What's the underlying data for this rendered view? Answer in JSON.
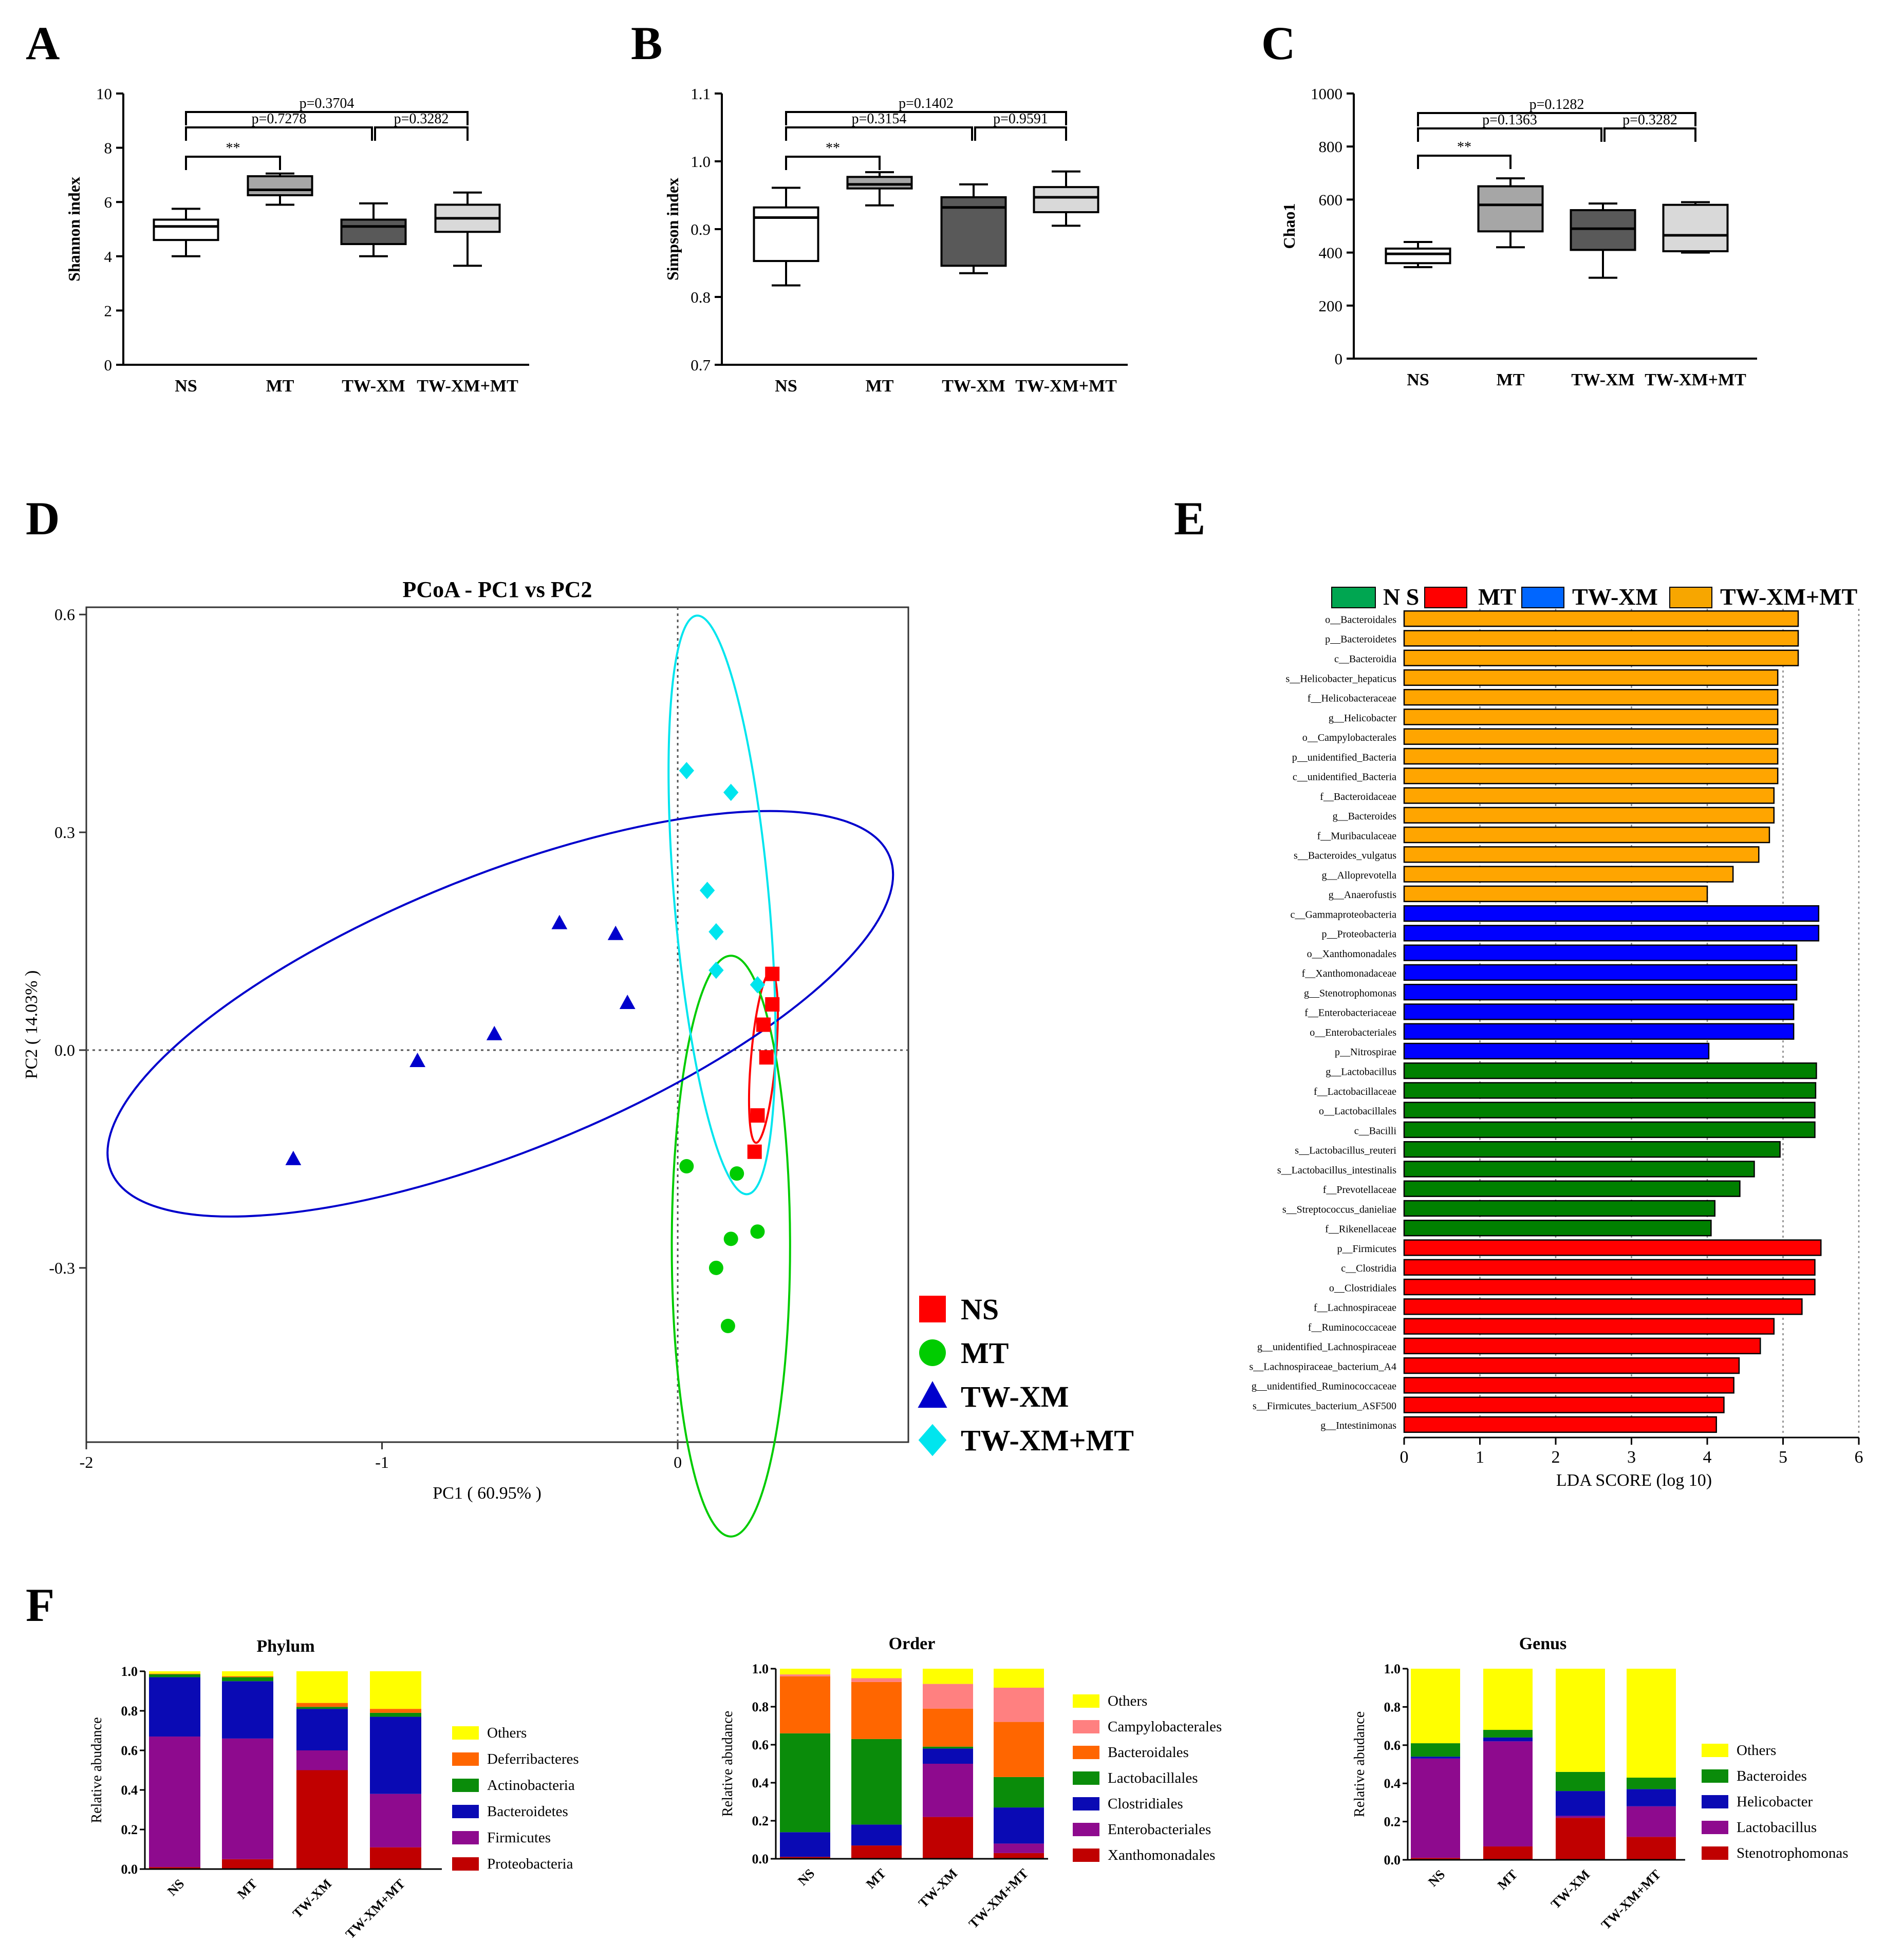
{
  "chart_data": [
    {
      "panel": "A",
      "type": "box",
      "ylabel": "Shannon index",
      "ylim": [
        0,
        10
      ],
      "yticks": [
        0,
        2,
        4,
        6,
        8,
        10
      ],
      "categories": [
        "NS",
        "MT",
        "TW-XM",
        "TW-XM+MT"
      ],
      "boxes": [
        {
          "min": 4.0,
          "q1": 4.6,
          "median": 5.1,
          "q3": 5.35,
          "max": 5.75,
          "fill": "#ffffff"
        },
        {
          "min": 5.9,
          "q1": 6.25,
          "median": 6.45,
          "q3": 6.95,
          "max": 7.05,
          "fill": "#a6a6a6"
        },
        {
          "min": 4.0,
          "q1": 4.45,
          "median": 5.1,
          "q3": 5.35,
          "max": 5.95,
          "fill": "#595959"
        },
        {
          "min": 3.65,
          "q1": 4.9,
          "median": 5.4,
          "q3": 5.9,
          "max": 6.35,
          "fill": "#d9d9d9"
        }
      ],
      "brackets": [
        {
          "from": 0,
          "to": 1,
          "label": "**"
        },
        {
          "from": 0,
          "to": 2,
          "label": "p=0.7278"
        },
        {
          "from": 2,
          "to": 3,
          "label": "p=0.3282"
        },
        {
          "from": 0,
          "to": 3,
          "label": "p=0.3704"
        }
      ]
    },
    {
      "panel": "B",
      "type": "box",
      "ylabel": "Simpson index",
      "ylim": [
        0.7,
        1.1
      ],
      "yticks": [
        "0.7",
        "0.8",
        "0.9",
        "1.0",
        "1.1"
      ],
      "categories": [
        "NS",
        "MT",
        "TW-XM",
        "TW-XM+MT"
      ],
      "boxes": [
        {
          "min": 0.817,
          "q1": 0.853,
          "median": 0.917,
          "q3": 0.932,
          "max": 0.961,
          "fill": "#ffffff"
        },
        {
          "min": 0.935,
          "q1": 0.96,
          "median": 0.966,
          "q3": 0.977,
          "max": 0.984,
          "fill": "#a6a6a6"
        },
        {
          "min": 0.835,
          "q1": 0.846,
          "median": 0.932,
          "q3": 0.947,
          "max": 0.966,
          "fill": "#595959"
        },
        {
          "min": 0.905,
          "q1": 0.925,
          "median": 0.947,
          "q3": 0.962,
          "max": 0.985,
          "fill": "#d9d9d9"
        }
      ],
      "brackets": [
        {
          "from": 0,
          "to": 1,
          "label": "**"
        },
        {
          "from": 0,
          "to": 2,
          "label": "p=0.3154"
        },
        {
          "from": 2,
          "to": 3,
          "label": "p=0.9591"
        },
        {
          "from": 0,
          "to": 3,
          "label": "p=0.1402"
        }
      ]
    },
    {
      "panel": "C",
      "type": "box",
      "ylabel": "Chao1",
      "ylim": [
        0,
        1000
      ],
      "yticks": [
        0,
        200,
        400,
        600,
        800,
        1000
      ],
      "categories": [
        "NS",
        "MT",
        "TW-XM",
        "TW-XM+MT"
      ],
      "boxes": [
        {
          "min": 345,
          "q1": 360,
          "median": 395,
          "q3": 415,
          "max": 440,
          "fill": "#ffffff"
        },
        {
          "min": 420,
          "q1": 480,
          "median": 580,
          "q3": 650,
          "max": 680,
          "fill": "#a6a6a6"
        },
        {
          "min": 305,
          "q1": 410,
          "median": 490,
          "q3": 560,
          "max": 585,
          "fill": "#595959"
        },
        {
          "min": 400,
          "q1": 405,
          "median": 465,
          "q3": 580,
          "max": 590,
          "fill": "#d9d9d9"
        }
      ],
      "brackets": [
        {
          "from": 0,
          "to": 1,
          "label": "**"
        },
        {
          "from": 0,
          "to": 2,
          "label": "p=0.1363"
        },
        {
          "from": 2,
          "to": 3,
          "label": "p=0.3282"
        },
        {
          "from": 0,
          "to": 3,
          "label": "p=0.1282"
        }
      ]
    },
    {
      "panel": "D",
      "type": "scatter",
      "title": "PCoA - PC1 vs PC2",
      "xlabel": "PC1 ( 60.95% )",
      "ylabel": "PC2 ( 14.03% )",
      "xlim": [
        -2.0,
        0.78
      ],
      "ylim": [
        -0.54,
        0.61
      ],
      "xticks": [
        -2,
        -1,
        0
      ],
      "yticks": [
        -0.3,
        0.0,
        0.3,
        0.6
      ],
      "yticklabels": [
        "-0.3",
        "0.0",
        "0.3",
        "0.6"
      ],
      "series": [
        {
          "name": "NS",
          "color": "#ff0000",
          "marker": "square",
          "points": [
            [
              0.32,
              0.105
            ],
            [
              0.32,
              0.063
            ],
            [
              0.29,
              0.035
            ],
            [
              0.3,
              -0.01
            ],
            [
              0.27,
              -0.09
            ],
            [
              0.26,
              -0.14
            ]
          ],
          "ellipse": {
            "cx": 0.29,
            "cy": -0.01,
            "rx": 0.29,
            "ry": 0.017,
            "angle": -85
          }
        },
        {
          "name": "MT",
          "color": "#00cc00",
          "marker": "circle",
          "points": [
            [
              0.03,
              -0.16
            ],
            [
              0.2,
              -0.17
            ],
            [
              0.27,
              -0.25
            ],
            [
              0.18,
              -0.26
            ],
            [
              0.13,
              -0.3
            ],
            [
              0.17,
              -0.38
            ]
          ],
          "ellipse": {
            "cx": 0.18,
            "cy": -0.27,
            "rx": 0.2,
            "ry": 0.4,
            "angle": 0
          }
        },
        {
          "name": "TW-XM",
          "color": "#0000cc",
          "marker": "triangle",
          "points": [
            [
              -1.3,
              -0.15
            ],
            [
              -0.88,
              -0.015
            ],
            [
              -0.62,
              0.022
            ],
            [
              -0.17,
              0.065
            ],
            [
              -0.4,
              0.175
            ],
            [
              -0.21,
              0.16
            ]
          ],
          "ellipse": {
            "cx": -0.6,
            "cy": 0.05,
            "rx": 1.42,
            "ry": 0.19,
            "angle": -22
          }
        },
        {
          "name": "TW-XM+MT",
          "color": "#00e5ee",
          "marker": "diamond",
          "points": [
            [
              0.03,
              0.385
            ],
            [
              0.18,
              0.355
            ],
            [
              0.1,
              0.22
            ],
            [
              0.13,
              0.163
            ],
            [
              0.13,
              0.11
            ],
            [
              0.27,
              0.09
            ]
          ],
          "ellipse": {
            "cx": 0.15,
            "cy": 0.2,
            "rx": 0.16,
            "ry": 0.4,
            "angle": -5
          }
        }
      ]
    },
    {
      "panel": "E",
      "type": "bar",
      "orientation": "horizontal",
      "xlabel": "LDA SCORE (log 10)",
      "xlim": [
        0,
        6
      ],
      "xticks": [
        0,
        1,
        2,
        3,
        4,
        5,
        6
      ],
      "legend": [
        {
          "name": "N S",
          "color": "#00a651"
        },
        {
          "name": "MT",
          "color": "#ff0000"
        },
        {
          "name": "TW-XM",
          "color": "#0066ff"
        },
        {
          "name": "TW-XM+MT",
          "color": "#f7a600"
        }
      ],
      "bars": [
        {
          "label": "o__Bacteroidales",
          "value": 5.2,
          "color": "#ffa500"
        },
        {
          "label": "p__Bacteroidetes",
          "value": 5.2,
          "color": "#ffa500"
        },
        {
          "label": "c__Bacteroidia",
          "value": 5.2,
          "color": "#ffa500"
        },
        {
          "label": "s__Helicobacter_hepaticus",
          "value": 4.93,
          "color": "#ffa500"
        },
        {
          "label": "f__Helicobacteraceae",
          "value": 4.93,
          "color": "#ffa500"
        },
        {
          "label": "g__Helicobacter",
          "value": 4.93,
          "color": "#ffa500"
        },
        {
          "label": "o__Campylobacterales",
          "value": 4.93,
          "color": "#ffa500"
        },
        {
          "label": "p__unidentified_Bacteria",
          "value": 4.93,
          "color": "#ffa500"
        },
        {
          "label": "c__unidentified_Bacteria",
          "value": 4.93,
          "color": "#ffa500"
        },
        {
          "label": "f__Bacteroidaceae",
          "value": 4.88,
          "color": "#ffa500"
        },
        {
          "label": "g__Bacteroides",
          "value": 4.88,
          "color": "#ffa500"
        },
        {
          "label": "f__Muribaculaceae",
          "value": 4.82,
          "color": "#ffa500"
        },
        {
          "label": "s__Bacteroides_vulgatus",
          "value": 4.68,
          "color": "#ffa500"
        },
        {
          "label": "g__Alloprevotella",
          "value": 4.34,
          "color": "#ffa500"
        },
        {
          "label": "g__Anaerofustis",
          "value": 4.0,
          "color": "#ffa500"
        },
        {
          "label": "c__Gammaproteobacteria",
          "value": 5.47,
          "color": "#0000ff"
        },
        {
          "label": "p__Proteobacteria",
          "value": 5.47,
          "color": "#0000ff"
        },
        {
          "label": "o__Xanthomonadales",
          "value": 5.18,
          "color": "#0000ff"
        },
        {
          "label": "f__Xanthomonadaceae",
          "value": 5.18,
          "color": "#0000ff"
        },
        {
          "label": "g__Stenotrophomonas",
          "value": 5.18,
          "color": "#0000ff"
        },
        {
          "label": "f__Enterobacteriaceae",
          "value": 5.14,
          "color": "#0000ff"
        },
        {
          "label": "o__Enterobacteriales",
          "value": 5.14,
          "color": "#0000ff"
        },
        {
          "label": "p__Nitrospirae",
          "value": 4.02,
          "color": "#0000ff"
        },
        {
          "label": "g__Lactobacillus",
          "value": 5.44,
          "color": "#008000"
        },
        {
          "label": "f__Lactobacillaceae",
          "value": 5.43,
          "color": "#008000"
        },
        {
          "label": "o__Lactobacillales",
          "value": 5.42,
          "color": "#008000"
        },
        {
          "label": "c__Bacilli",
          "value": 5.42,
          "color": "#008000"
        },
        {
          "label": "s__Lactobacillus_reuteri",
          "value": 4.96,
          "color": "#008000"
        },
        {
          "label": "s__Lactobacillus_intestinalis",
          "value": 4.62,
          "color": "#008000"
        },
        {
          "label": "f__Prevotellaceae",
          "value": 4.43,
          "color": "#008000"
        },
        {
          "label": "s__Streptococcus_danieliae",
          "value": 4.1,
          "color": "#008000"
        },
        {
          "label": "f__Rikenellaceae",
          "value": 4.05,
          "color": "#008000"
        },
        {
          "label": "p__Firmicutes",
          "value": 5.5,
          "color": "#ff0000"
        },
        {
          "label": "c__Clostridia",
          "value": 5.42,
          "color": "#ff0000"
        },
        {
          "label": "o__Clostridiales",
          "value": 5.42,
          "color": "#ff0000"
        },
        {
          "label": "f__Lachnospiraceae",
          "value": 5.25,
          "color": "#ff0000"
        },
        {
          "label": "f__Ruminococcaceae",
          "value": 4.88,
          "color": "#ff0000"
        },
        {
          "label": "g__unidentified_Lachnospiraceae",
          "value": 4.7,
          "color": "#ff0000"
        },
        {
          "label": "s__Lachnospiraceae_bacterium_A4",
          "value": 4.42,
          "color": "#ff0000"
        },
        {
          "label": "g__unidentified_Ruminococcaceae",
          "value": 4.35,
          "color": "#ff0000"
        },
        {
          "label": "s__Firmicutes_bacterium_ASF500",
          "value": 4.22,
          "color": "#ff0000"
        },
        {
          "label": "g__Intestinimonas",
          "value": 4.12,
          "color": "#ff0000"
        }
      ]
    },
    {
      "panel": "F",
      "type": "stacked-bar",
      "title": "Phylum",
      "ylabel": "Relative abudance",
      "ylim": [
        0,
        1
      ],
      "yticks": [
        "0.0",
        "0.2",
        "0.4",
        "0.6",
        "0.8",
        "1.0"
      ],
      "categories": [
        "NS",
        "MT",
        "TW-XM",
        "TW-XM+MT"
      ],
      "series": [
        {
          "name": "Proteobacteria",
          "color": "#c00000",
          "values": [
            0.01,
            0.05,
            0.5,
            0.11
          ]
        },
        {
          "name": "Firmicutes",
          "color": "#8e0a8e",
          "values": [
            0.66,
            0.61,
            0.1,
            0.27
          ]
        },
        {
          "name": "Bacteroidetes",
          "color": "#0a0ab4",
          "values": [
            0.3,
            0.29,
            0.21,
            0.39
          ]
        },
        {
          "name": "Actinobacteria",
          "color": "#0a8c0a",
          "values": [
            0.015,
            0.02,
            0.01,
            0.02
          ]
        },
        {
          "name": "Deferribacteres",
          "color": "#ff6600",
          "values": [
            0.003,
            0.005,
            0.02,
            0.02
          ]
        },
        {
          "name": "Others",
          "color": "#ffff00",
          "values": [
            0.012,
            0.025,
            0.16,
            0.19
          ]
        }
      ]
    },
    {
      "panel": "F",
      "type": "stacked-bar",
      "title": "Order",
      "ylabel": "Relative abudance",
      "ylim": [
        0,
        1
      ],
      "yticks": [
        "0.0",
        "0.2",
        "0.4",
        "0.6",
        "0.8",
        "1.0"
      ],
      "categories": [
        "NS",
        "MT",
        "TW-XM",
        "TW-XM+MT"
      ],
      "series": [
        {
          "name": "Xanthomonadales",
          "color": "#c00000",
          "values": [
            0.01,
            0.07,
            0.22,
            0.03
          ]
        },
        {
          "name": "Enterobacteriales",
          "color": "#8e0a8e",
          "values": [
            0.0,
            0.0,
            0.28,
            0.05
          ]
        },
        {
          "name": "Clostridiales",
          "color": "#0a0ab4",
          "values": [
            0.13,
            0.11,
            0.08,
            0.19
          ]
        },
        {
          "name": "Lactobacillales",
          "color": "#0a8c0a",
          "values": [
            0.52,
            0.45,
            0.01,
            0.16
          ]
        },
        {
          "name": "Bacteroidales",
          "color": "#ff6600",
          "values": [
            0.3,
            0.3,
            0.2,
            0.29
          ]
        },
        {
          "name": "Campylobacterales",
          "color": "#ff8080",
          "values": [
            0.01,
            0.02,
            0.13,
            0.18
          ]
        },
        {
          "name": "Others",
          "color": "#ffff00",
          "values": [
            0.03,
            0.05,
            0.08,
            0.1
          ]
        }
      ]
    },
    {
      "panel": "F",
      "type": "stacked-bar",
      "title": "Genus",
      "ylabel": "Relative abudance",
      "ylim": [
        0,
        1
      ],
      "yticks": [
        "0.0",
        "0.2",
        "0.4",
        "0.6",
        "0.8",
        "1.0"
      ],
      "categories": [
        "NS",
        "MT",
        "TW-XM",
        "TW-XM+MT"
      ],
      "series": [
        {
          "name": "Stenotrophomonas",
          "color": "#c00000",
          "values": [
            0.01,
            0.07,
            0.22,
            0.12
          ]
        },
        {
          "name": "Lactobacillus",
          "color": "#8e0a8e",
          "values": [
            0.52,
            0.55,
            0.01,
            0.16
          ]
        },
        {
          "name": "Helicobacter",
          "color": "#0a0ab4",
          "values": [
            0.01,
            0.02,
            0.13,
            0.09
          ]
        },
        {
          "name": "Bacteroides",
          "color": "#0a8c0a",
          "values": [
            0.07,
            0.04,
            0.1,
            0.06
          ]
        },
        {
          "name": "Others",
          "color": "#ffff00",
          "values": [
            0.39,
            0.32,
            0.54,
            0.57
          ]
        }
      ]
    }
  ],
  "panel_letters": [
    "A",
    "B",
    "C",
    "D",
    "E",
    "F"
  ]
}
